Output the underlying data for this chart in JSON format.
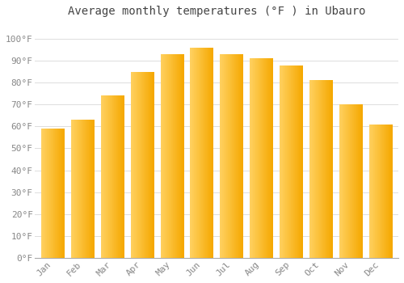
{
  "title": "Average monthly temperatures (°F ) in Ubauro",
  "months": [
    "Jan",
    "Feb",
    "Mar",
    "Apr",
    "May",
    "Jun",
    "Jul",
    "Aug",
    "Sep",
    "Oct",
    "Nov",
    "Dec"
  ],
  "values": [
    59,
    63,
    74,
    85,
    93,
    96,
    93,
    91,
    88,
    81,
    70,
    61
  ],
  "bar_color_left": "#FFD060",
  "bar_color_right": "#F5A800",
  "background_color": "#FFFFFF",
  "grid_color": "#DDDDDD",
  "yticks": [
    0,
    10,
    20,
    30,
    40,
    50,
    60,
    70,
    80,
    90,
    100
  ],
  "ytick_labels": [
    "0°F",
    "10°F",
    "20°F",
    "30°F",
    "40°F",
    "50°F",
    "60°F",
    "70°F",
    "80°F",
    "90°F",
    "100°F"
  ],
  "ylim": [
    0,
    107
  ],
  "title_fontsize": 10,
  "tick_fontsize": 8,
  "title_color": "#444444",
  "tick_color": "#888888"
}
